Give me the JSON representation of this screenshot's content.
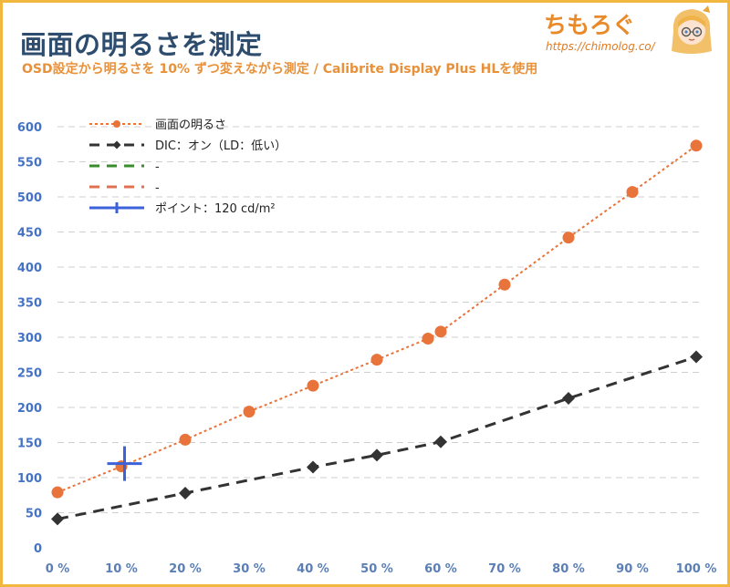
{
  "header": {
    "title": "画面の明るさを測定",
    "subtitle": "OSD設定から明るさを 10% ずつ変えながら測定 / Calibrite Display Plus HLを使用"
  },
  "logo": {
    "name": "ちもろぐ",
    "url": "https://chimolog.co/"
  },
  "colors": {
    "title": "#2e4d6e",
    "subtitle": "#e8913a",
    "frame": "#f2b73e",
    "tick_y": "#4472c4",
    "tick_x": "#5b7fb5"
  },
  "chart_data": {
    "type": "line",
    "title": "",
    "xlabel": "",
    "ylabel": "",
    "ylim": [
      0,
      600
    ],
    "y_ticks": [
      0,
      50,
      100,
      150,
      200,
      250,
      300,
      350,
      400,
      450,
      500,
      550,
      600
    ],
    "x_ticks": [
      "0 %",
      "10 %",
      "20 %",
      "30 %",
      "40 %",
      "50 %",
      "60 %",
      "70 %",
      "80 %",
      "90 %",
      "100 %"
    ],
    "xlim": [
      0,
      100
    ],
    "grid": "horizontal dashed",
    "legend_position": "top-left",
    "series": [
      {
        "name": "画面の明るさ",
        "color": "#e8743b",
        "style": "dotted",
        "marker": "circle",
        "points": [
          [
            0,
            79
          ],
          [
            10,
            116
          ],
          [
            20,
            154
          ],
          [
            30,
            194
          ],
          [
            40,
            231
          ],
          [
            50,
            268
          ],
          [
            58,
            298
          ],
          [
            60,
            308
          ],
          [
            70,
            375
          ],
          [
            80,
            442
          ],
          [
            90,
            507
          ],
          [
            100,
            573
          ]
        ]
      },
      {
        "name": "DIC：オン（LD：低い）",
        "color": "#333333",
        "style": "dashed",
        "marker": "diamond",
        "points": [
          [
            0,
            41
          ],
          [
            20,
            78
          ],
          [
            40,
            115
          ],
          [
            50,
            132
          ],
          [
            60,
            151
          ],
          [
            80,
            213
          ],
          [
            100,
            272
          ]
        ]
      },
      {
        "name": "-",
        "color": "#3a8c2e",
        "style": "dashed",
        "marker": "none",
        "points": []
      },
      {
        "name": "-",
        "color": "#e07050",
        "style": "dashed",
        "marker": "none",
        "points": []
      },
      {
        "name": "ポイント：120 cd/m²",
        "color": "#3b62d9",
        "style": "solid",
        "marker": "cross",
        "points": [
          [
            10.5,
            120
          ]
        ]
      }
    ]
  }
}
